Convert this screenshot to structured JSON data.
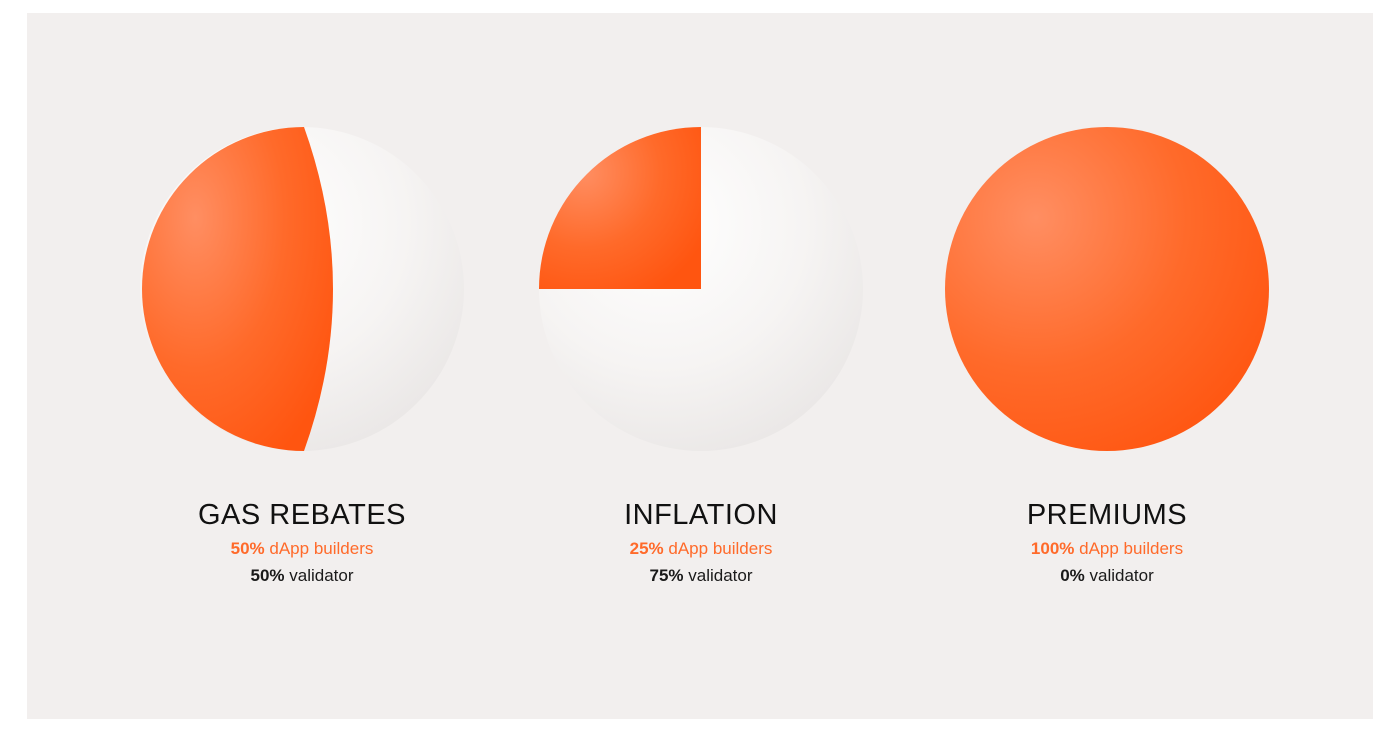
{
  "colors": {
    "background": "#f2efee",
    "builders": "#ff5510",
    "validator": "#e8e5e4",
    "builders_text": "#ff6a2a",
    "validator_text": "#1a1a1a"
  },
  "chart_data": [
    {
      "type": "pie",
      "title": "GAS REBATES",
      "series": [
        {
          "name": "dApp builders",
          "value": 50,
          "label": "50%"
        },
        {
          "name": "validator",
          "value": 50,
          "label": "50%"
        }
      ]
    },
    {
      "type": "pie",
      "title": "INFLATION",
      "series": [
        {
          "name": "dApp builders",
          "value": 25,
          "label": "25%"
        },
        {
          "name": "validator",
          "value": 75,
          "label": "75%"
        }
      ]
    },
    {
      "type": "pie",
      "title": "PREMIUMS",
      "series": [
        {
          "name": "dApp builders",
          "value": 100,
          "label": "100%"
        },
        {
          "name": "validator",
          "value": 0,
          "label": "0%"
        }
      ]
    }
  ]
}
